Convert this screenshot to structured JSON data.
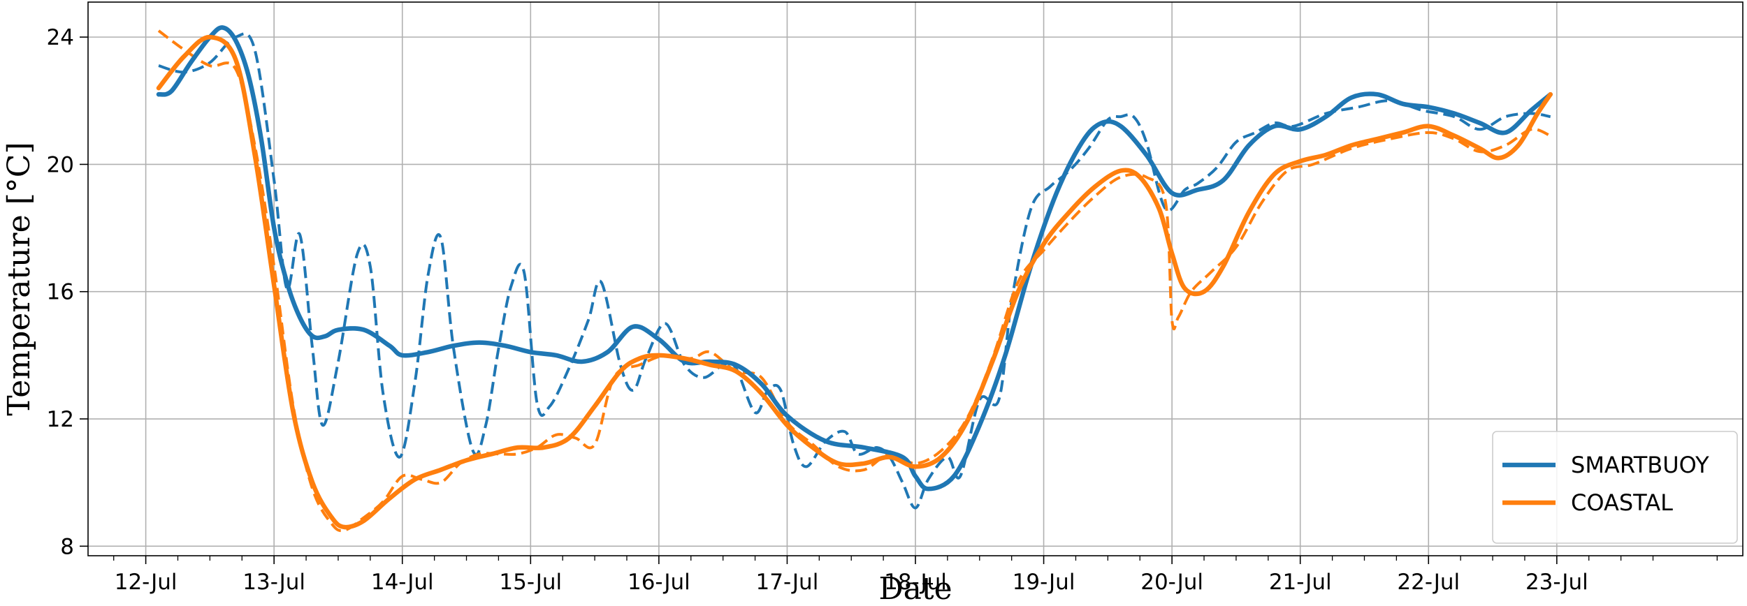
{
  "chart_data": {
    "type": "line",
    "title": "",
    "xlabel": "Date",
    "ylabel": "Temperature [°C]",
    "x_tick_labels": [
      "12-Jul",
      "13-Jul",
      "14-Jul",
      "15-Jul",
      "16-Jul",
      "17-Jul",
      "18-Jul",
      "19-Jul",
      "20-Jul",
      "21-Jul",
      "22-Jul",
      "23-Jul"
    ],
    "x_tick_days": [
      12,
      13,
      14,
      15,
      16,
      17,
      18,
      19,
      20,
      21,
      22,
      23
    ],
    "xlim": [
      11.55,
      24.45
    ],
    "y_ticks": [
      8,
      12,
      16,
      20,
      24
    ],
    "y_tick_labels": [
      "8",
      "12",
      "16",
      "20",
      "24"
    ],
    "ylim": [
      7.7,
      25.1
    ],
    "grid": true,
    "minor_ticks_per_day": 4,
    "legend_position": "lower-right",
    "series": [
      {
        "name": "SMARTBUOY",
        "color": "#1f77b4",
        "style": "solid",
        "show_in_legend": true,
        "x": [
          12.1,
          12.2,
          12.35,
          12.5,
          12.6,
          12.7,
          12.8,
          12.9,
          13.0,
          13.1,
          13.2,
          13.3,
          13.4,
          13.5,
          13.7,
          13.9,
          14.0,
          14.2,
          14.4,
          14.6,
          14.8,
          15.0,
          15.2,
          15.4,
          15.6,
          15.8,
          16.0,
          16.2,
          16.4,
          16.6,
          16.8,
          17.0,
          17.3,
          17.6,
          17.9,
          18.0,
          18.1,
          18.3,
          18.5,
          18.7,
          18.9,
          19.1,
          19.3,
          19.45,
          19.6,
          19.8,
          20.0,
          20.2,
          20.4,
          20.6,
          20.8,
          21.0,
          21.2,
          21.4,
          21.6,
          21.8,
          22.0,
          22.2,
          22.4,
          22.6,
          22.8,
          22.95
        ],
        "values": [
          22.2,
          22.3,
          23.2,
          24.0,
          24.3,
          23.9,
          22.8,
          20.8,
          18.0,
          16.3,
          15.2,
          14.6,
          14.6,
          14.8,
          14.8,
          14.3,
          14.0,
          14.1,
          14.3,
          14.4,
          14.3,
          14.1,
          14.0,
          13.8,
          14.1,
          14.9,
          14.5,
          13.8,
          13.8,
          13.7,
          13.1,
          12.1,
          11.3,
          11.1,
          10.8,
          10.2,
          9.8,
          10.2,
          11.8,
          14.0,
          16.8,
          19.1,
          20.7,
          21.3,
          21.2,
          20.3,
          19.1,
          19.2,
          19.5,
          20.6,
          21.2,
          21.1,
          21.5,
          22.1,
          22.2,
          21.9,
          21.8,
          21.6,
          21.3,
          21.0,
          21.7,
          22.2
        ]
      },
      {
        "name": "SMARTBUOY",
        "color": "#1f77b4",
        "style": "dashed",
        "show_in_legend": false,
        "x": [
          12.1,
          12.3,
          12.5,
          12.7,
          12.85,
          13.0,
          13.1,
          13.2,
          13.3,
          13.38,
          13.5,
          13.65,
          13.75,
          13.85,
          13.98,
          14.1,
          14.2,
          14.3,
          14.4,
          14.55,
          14.65,
          14.75,
          14.85,
          14.95,
          15.05,
          15.15,
          15.3,
          15.45,
          15.55,
          15.7,
          15.8,
          15.9,
          16.05,
          16.2,
          16.35,
          16.5,
          16.6,
          16.75,
          16.85,
          16.95,
          17.05,
          17.15,
          17.3,
          17.45,
          17.55,
          17.7,
          17.8,
          17.9,
          18.0,
          18.1,
          18.25,
          18.35,
          18.5,
          18.65,
          18.75,
          18.9,
          19.05,
          19.2,
          19.35,
          19.5,
          19.6,
          19.7,
          19.8,
          19.95,
          20.1,
          20.2,
          20.35,
          20.5,
          20.65,
          20.8,
          20.95,
          21.2,
          21.45,
          21.7,
          21.95,
          22.2,
          22.4,
          22.6,
          22.8,
          22.95
        ],
        "values": [
          23.1,
          22.9,
          23.2,
          24.0,
          23.6,
          19.5,
          16.1,
          17.8,
          14.2,
          11.8,
          13.8,
          17.2,
          16.8,
          12.8,
          10.8,
          13.2,
          16.5,
          17.7,
          14.2,
          11.0,
          11.8,
          14.2,
          16.2,
          16.6,
          12.5,
          12.4,
          13.6,
          15.1,
          16.3,
          13.7,
          12.9,
          13.9,
          15.0,
          13.7,
          13.3,
          13.7,
          13.6,
          12.2,
          12.9,
          12.9,
          11.2,
          10.5,
          11.3,
          11.6,
          10.9,
          11.1,
          10.8,
          10.0,
          9.2,
          10.1,
          10.8,
          10.2,
          12.6,
          12.6,
          15.7,
          18.6,
          19.3,
          19.8,
          20.5,
          21.4,
          21.5,
          21.5,
          20.7,
          18.6,
          19.2,
          19.4,
          19.9,
          20.7,
          21.0,
          21.3,
          21.2,
          21.6,
          21.8,
          22.0,
          21.7,
          21.5,
          21.1,
          21.5,
          21.6,
          21.5
        ]
      },
      {
        "name": "COASTAL",
        "color": "#ff7f0e",
        "style": "solid",
        "show_in_legend": true,
        "x": [
          12.1,
          12.3,
          12.5,
          12.7,
          12.85,
          13.0,
          13.15,
          13.3,
          13.45,
          13.55,
          13.7,
          13.9,
          14.1,
          14.3,
          14.5,
          14.7,
          14.9,
          15.1,
          15.3,
          15.5,
          15.7,
          15.85,
          16.0,
          16.2,
          16.4,
          16.6,
          16.8,
          17.0,
          17.2,
          17.4,
          17.6,
          17.8,
          18.0,
          18.2,
          18.4,
          18.6,
          18.8,
          19.0,
          19.2,
          19.4,
          19.6,
          19.75,
          19.9,
          20.0,
          20.1,
          20.25,
          20.4,
          20.6,
          20.8,
          21.0,
          21.2,
          21.4,
          21.6,
          21.8,
          22.0,
          22.2,
          22.4,
          22.55,
          22.7,
          22.85,
          22.95
        ],
        "values": [
          22.4,
          23.4,
          24.0,
          23.3,
          20.3,
          16.2,
          12.2,
          10.0,
          8.9,
          8.6,
          8.8,
          9.5,
          10.1,
          10.4,
          10.7,
          10.9,
          11.1,
          11.1,
          11.4,
          12.4,
          13.5,
          13.9,
          14.0,
          13.9,
          13.7,
          13.5,
          12.8,
          11.8,
          11.1,
          10.6,
          10.6,
          10.8,
          10.5,
          10.8,
          11.9,
          13.8,
          16.0,
          17.5,
          18.5,
          19.3,
          19.8,
          19.6,
          18.6,
          17.2,
          16.1,
          16.0,
          16.8,
          18.5,
          19.7,
          20.1,
          20.3,
          20.6,
          20.8,
          21.0,
          21.2,
          20.9,
          20.5,
          20.2,
          20.6,
          21.6,
          22.2
        ]
      },
      {
        "name": "COASTAL",
        "color": "#ff7f0e",
        "style": "dashed",
        "show_in_legend": false,
        "x": [
          12.1,
          12.3,
          12.5,
          12.7,
          12.85,
          13.0,
          13.15,
          13.3,
          13.45,
          13.55,
          13.7,
          13.85,
          14.0,
          14.15,
          14.3,
          14.45,
          14.6,
          14.75,
          14.9,
          15.05,
          15.2,
          15.35,
          15.5,
          15.65,
          15.85,
          16.05,
          16.25,
          16.4,
          16.6,
          16.8,
          17.0,
          17.2,
          17.4,
          17.6,
          17.8,
          18.0,
          18.2,
          18.4,
          18.6,
          18.8,
          19.0,
          19.2,
          19.4,
          19.6,
          19.8,
          19.95,
          20.0,
          20.05,
          20.15,
          20.3,
          20.5,
          20.7,
          20.9,
          21.1,
          21.4,
          21.7,
          22.0,
          22.2,
          22.4,
          22.6,
          22.8,
          22.95
        ],
        "values": [
          24.2,
          23.6,
          23.1,
          23.0,
          20.6,
          16.8,
          12.4,
          9.8,
          8.7,
          8.5,
          8.9,
          9.4,
          10.2,
          10.1,
          10.0,
          10.6,
          10.9,
          10.9,
          10.9,
          11.1,
          11.5,
          11.4,
          11.2,
          13.3,
          13.7,
          14.0,
          13.9,
          14.1,
          13.5,
          13.3,
          11.9,
          11.2,
          10.5,
          10.4,
          10.9,
          10.6,
          11.0,
          12.0,
          13.9,
          16.3,
          17.3,
          18.2,
          19.0,
          19.6,
          19.6,
          18.8,
          15.1,
          15.2,
          16.0,
          16.6,
          17.4,
          18.8,
          19.8,
          20.0,
          20.5,
          20.8,
          21.0,
          20.8,
          20.4,
          20.6,
          21.1,
          20.9
        ]
      }
    ]
  }
}
